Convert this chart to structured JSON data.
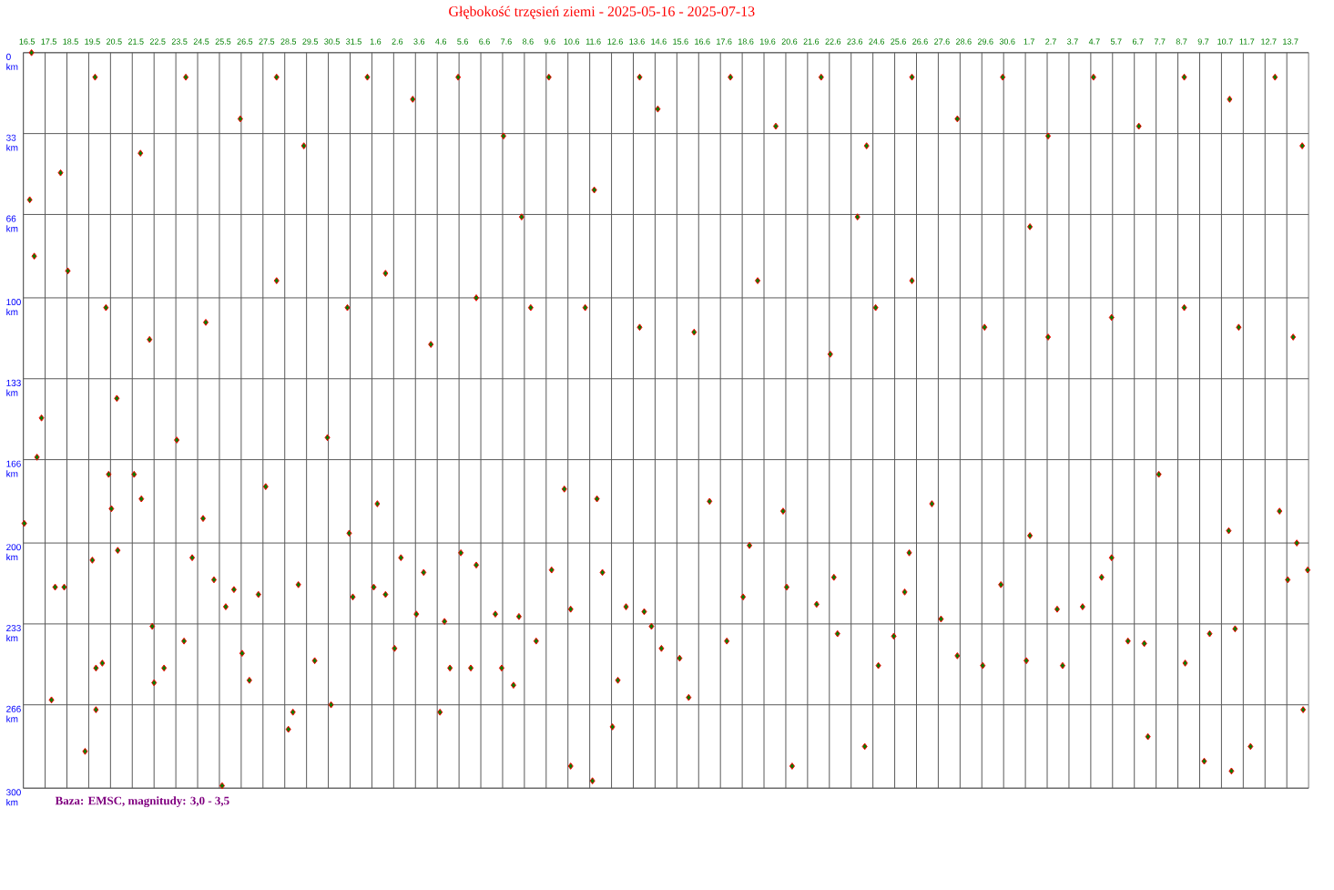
{
  "chart_data": {
    "type": "scatter",
    "title": "Głębokość trzęsień ziemi - 2025-05-16 - 2025-07-13",
    "annotations": [
      "Baza: EMSC, magnitudy: 3,0 - 3,5"
    ],
    "xlim": [
      "2025-05-16",
      "2025-07-14"
    ],
    "xticks": [
      {
        "value": "2025-05-16",
        "label": "16.5"
      },
      {
        "value": "2025-05-17",
        "label": "17.5"
      },
      {
        "value": "2025-05-18",
        "label": "18.5"
      },
      {
        "value": "2025-05-19",
        "label": "19.5"
      },
      {
        "value": "2025-05-20",
        "label": "20.5"
      },
      {
        "value": "2025-05-21",
        "label": "21.5"
      },
      {
        "value": "2025-05-22",
        "label": "22.5"
      },
      {
        "value": "2025-05-23",
        "label": "23.5"
      },
      {
        "value": "2025-05-24",
        "label": "24.5"
      },
      {
        "value": "2025-05-25",
        "label": "25.5"
      },
      {
        "value": "2025-05-26",
        "label": "26.5"
      },
      {
        "value": "2025-05-27",
        "label": "27.5"
      },
      {
        "value": "2025-05-28",
        "label": "28.5"
      },
      {
        "value": "2025-05-29",
        "label": "29.5"
      },
      {
        "value": "2025-05-30",
        "label": "30.5"
      },
      {
        "value": "2025-05-31",
        "label": "31.5"
      },
      {
        "value": "2025-06-01",
        "label": "1.6"
      },
      {
        "value": "2025-06-02",
        "label": "2.6"
      },
      {
        "value": "2025-06-03",
        "label": "3.6"
      },
      {
        "value": "2025-06-04",
        "label": "4.6"
      },
      {
        "value": "2025-06-05",
        "label": "5.6"
      },
      {
        "value": "2025-06-06",
        "label": "6.6"
      },
      {
        "value": "2025-06-07",
        "label": "7.6"
      },
      {
        "value": "2025-06-08",
        "label": "8.6"
      },
      {
        "value": "2025-06-09",
        "label": "9.6"
      },
      {
        "value": "2025-06-10",
        "label": "10.6"
      },
      {
        "value": "2025-06-11",
        "label": "11.6"
      },
      {
        "value": "2025-06-12",
        "label": "12.6"
      },
      {
        "value": "2025-06-13",
        "label": "13.6"
      },
      {
        "value": "2025-06-14",
        "label": "14.6"
      },
      {
        "value": "2025-06-15",
        "label": "15.6"
      },
      {
        "value": "2025-06-16",
        "label": "16.6"
      },
      {
        "value": "2025-06-17",
        "label": "17.6"
      },
      {
        "value": "2025-06-18",
        "label": "18.6"
      },
      {
        "value": "2025-06-19",
        "label": "19.6"
      },
      {
        "value": "2025-06-20",
        "label": "20.6"
      },
      {
        "value": "2025-06-21",
        "label": "21.6"
      },
      {
        "value": "2025-06-22",
        "label": "22.6"
      },
      {
        "value": "2025-06-23",
        "label": "23.6"
      },
      {
        "value": "2025-06-24",
        "label": "24.6"
      },
      {
        "value": "2025-06-25",
        "label": "25.6"
      },
      {
        "value": "2025-06-26",
        "label": "26.6"
      },
      {
        "value": "2025-06-27",
        "label": "27.6"
      },
      {
        "value": "2025-06-28",
        "label": "28.6"
      },
      {
        "value": "2025-06-29",
        "label": "29.6"
      },
      {
        "value": "2025-06-30",
        "label": "30.6"
      },
      {
        "value": "2025-07-01",
        "label": "1.7"
      },
      {
        "value": "2025-07-02",
        "label": "2.7"
      },
      {
        "value": "2025-07-03",
        "label": "3.7"
      },
      {
        "value": "2025-07-04",
        "label": "4.7"
      },
      {
        "value": "2025-07-05",
        "label": "5.7"
      },
      {
        "value": "2025-07-06",
        "label": "6.7"
      },
      {
        "value": "2025-07-07",
        "label": "7.7"
      },
      {
        "value": "2025-07-08",
        "label": "8.7"
      },
      {
        "value": "2025-07-09",
        "label": "9.7"
      },
      {
        "value": "2025-07-10",
        "label": "10.7"
      },
      {
        "value": "2025-07-11",
        "label": "11.7"
      },
      {
        "value": "2025-07-12",
        "label": "12.7"
      },
      {
        "value": "2025-07-13",
        "label": "13.7"
      }
    ],
    "ylim": [
      300,
      0
    ],
    "yticks": [
      {
        "value": 0,
        "label": "0 km"
      },
      {
        "value": 33,
        "label": "33 km"
      },
      {
        "value": 66,
        "label": "66 km"
      },
      {
        "value": 100,
        "label": "100 km"
      },
      {
        "value": 133,
        "label": "133 km"
      },
      {
        "value": 166,
        "label": "166 km"
      },
      {
        "value": 200,
        "label": "200 km"
      },
      {
        "value": 233,
        "label": "233 km"
      },
      {
        "value": 266,
        "label": "266 km"
      },
      {
        "value": 300,
        "label": "300 km"
      }
    ],
    "grid": true,
    "marker": "diamond",
    "series": [
      {
        "color": "#008000",
        "x": [
          "2025-05-16T01:00",
          "2025-05-16T09:00",
          "2025-05-16T07:00",
          "2025-05-16T12:00",
          "2025-05-16T15:00",
          "2025-05-16T20:00",
          "2025-05-17T07:00",
          "2025-05-17T11:00",
          "2025-05-17T21:00",
          "2025-05-17T17:00",
          "2025-05-18T01:00",
          "2025-05-18T20:00",
          "2025-05-19T04:00",
          "2025-05-19T08:00",
          "2025-05-19T08:00",
          "2025-05-19T15:00",
          "2025-05-19T22:00",
          "2025-05-20T01:00",
          "2025-05-20T08:00",
          "2025-05-20T07:00",
          "2025-05-21T02:00",
          "2025-05-21T10:00",
          "2025-05-21T22:00",
          "2025-05-22T00:00",
          "2025-05-22T11:00",
          "2025-05-23T01:00",
          "2025-05-23T09:00",
          "2025-05-23T18:00",
          "2025-05-24T06:00",
          "2025-05-24T18:00",
          "2025-05-25T07:00",
          "2025-05-25T03:00",
          "2025-05-25T16:00",
          "2025-05-26T01:00",
          "2025-05-26T09:00",
          "2025-05-26T19:00",
          "2025-05-27T03:00",
          "2025-05-28T04:00",
          "2025-05-28T09:00",
          "2025-05-28T15:00",
          "2025-05-29T09:00",
          "2025-05-30T03:00",
          "2025-05-29T23:00",
          "2025-05-30T23:00",
          "2025-05-31T03:00",
          "2025-06-01T02:00",
          "2025-06-01T06:00",
          "2025-06-01T15:00",
          "2025-06-02T01:00",
          "2025-06-02T08:00",
          "2025-06-03T01:00",
          "2025-06-03T09:00",
          "2025-06-04T03:00",
          "2025-06-04T08:00",
          "2025-06-04T14:00",
          "2025-06-05T02:00",
          "2025-06-05T13:00",
          "2025-06-05T19:00",
          "2025-06-06T16:00",
          "2025-06-06T23:00",
          "2025-06-07T12:00",
          "2025-06-07T18:00",
          "2025-06-08T13:00",
          "2025-06-09T06:00",
          "2025-06-09T20:00",
          "2025-06-10T03:00",
          "2025-06-10T03:00",
          "2025-06-11T03:00",
          "2025-06-11T08:00",
          "2025-06-11T14:00",
          "2025-06-12T01:00",
          "2025-06-12T07:00",
          "2025-06-12T16:00",
          "2025-06-13T12:00",
          "2025-06-13T20:00",
          "2025-06-14T07:00",
          "2025-06-15T03:00",
          "2025-06-15T13:00",
          "2025-06-16T12:00",
          "2025-06-17T07:00",
          "2025-06-18T01:00",
          "2025-06-18T08:00",
          "2025-06-19T21:00",
          "2025-06-20T07:00",
          "2025-06-20T01:00",
          "2025-06-21T10:00",
          "2025-06-22T05:00",
          "2025-06-22T09:00",
          "2025-06-23T15:00",
          "2025-06-24T06:00",
          "2025-06-24T23:00",
          "2025-06-25T11:00",
          "2025-06-25T16:00",
          "2025-06-26T17:00",
          "2025-06-27T03:00",
          "2025-06-27T21:00",
          "2025-06-29T01:00",
          "2025-06-29T21:00",
          "2025-07-01T01:00",
          "2025-07-01T05:00",
          "2025-07-02T11:00",
          "2025-07-02T17:00",
          "2025-07-03T15:00",
          "2025-07-04T12:00",
          "2025-07-04T23:00",
          "2025-07-05T17:00",
          "2025-07-06T11:00",
          "2025-07-06T15:00",
          "2025-07-07T03:00",
          "2025-07-08T08:00",
          "2025-07-09T05:00",
          "2025-07-09T11:00",
          "2025-07-10T08:00",
          "2025-07-10T11:00",
          "2025-07-10T15:00",
          "2025-07-11T08:00",
          "2025-07-12T16:00",
          "2025-07-13T01:00",
          "2025-07-13T11:00",
          "2025-07-13T18:00",
          "2025-07-13T23:00",
          "2025-05-19T07:00",
          "2025-05-23T11:00",
          "2025-05-27T15:00",
          "2025-05-31T19:00",
          "2025-06-04T23:00",
          "2025-06-09T03:00",
          "2025-06-13T07:00",
          "2025-06-17T11:00",
          "2025-06-21T15:00",
          "2025-06-25T19:00",
          "2025-06-29T23:00",
          "2025-07-04T03:00",
          "2025-07-08T07:00",
          "2025-07-12T11:00",
          "2025-05-19T19:00",
          "2025-05-21T19:00",
          "2025-05-24T09:00",
          "2025-05-27T15:00",
          "2025-05-30T21:00",
          "2025-06-01T15:00",
          "2025-06-03T17:00",
          "2025-06-05T19:00",
          "2025-06-08T07:00",
          "2025-06-10T19:00",
          "2025-06-13T07:00",
          "2025-06-15T19:00",
          "2025-06-18T17:00",
          "2025-06-22T01:00",
          "2025-06-24T03:00",
          "2025-06-25T19:00",
          "2025-06-29T03:00",
          "2025-07-02T01:00",
          "2025-07-04T23:00",
          "2025-07-08T07:00",
          "2025-07-10T19:00",
          "2025-07-13T07:00",
          "2025-05-21T09:00",
          "2025-05-25T23:00",
          "2025-05-28T21:00",
          "2025-06-02T21:00",
          "2025-06-07T01:00",
          "2025-06-11T05:00",
          "2025-06-14T03:00",
          "2025-06-19T13:00",
          "2025-06-23T17:00",
          "2025-06-27T21:00",
          "2025-07-02T01:00",
          "2025-07-06T05:00",
          "2025-07-10T09:00",
          "2025-07-13T17:00",
          "2025-06-07T21:00",
          "2025-07-01T05:00",
          "2025-06-23T07:00"
        ],
        "values": [
          192,
          0,
          60,
          83,
          165,
          149,
          264,
          218,
          218,
          49,
          89,
          285,
          207,
          251,
          268,
          249,
          172,
          186,
          203,
          141,
          172,
          182,
          234,
          257,
          251,
          158,
          240,
          206,
          190,
          215,
          226,
          299,
          219,
          245,
          256,
          221,
          177,
          276,
          269,
          217,
          248,
          266,
          157,
          196,
          222,
          218,
          184,
          221,
          243,
          206,
          229,
          212,
          269,
          232,
          251,
          204,
          251,
          209,
          229,
          251,
          258,
          230,
          240,
          211,
          178,
          291,
          227,
          297,
          182,
          212,
          275,
          256,
          226,
          228,
          234,
          243,
          247,
          263,
          183,
          240,
          222,
          201,
          187,
          291,
          218,
          225,
          214,
          237,
          283,
          250,
          238,
          220,
          204,
          184,
          231,
          246,
          250,
          217,
          248,
          197,
          227,
          250,
          226,
          214,
          206,
          240,
          241,
          279,
          172,
          249,
          289,
          237,
          195,
          293,
          235,
          283,
          187,
          215,
          200,
          268,
          211,
          10,
          10,
          10,
          10,
          10,
          10,
          10,
          10,
          10,
          10,
          10,
          10,
          10,
          10,
          104,
          117,
          110,
          93,
          104,
          90,
          119,
          100,
          104,
          104,
          112,
          114,
          93,
          123,
          104,
          93,
          112,
          116,
          108,
          104,
          112,
          116,
          41,
          27,
          38,
          19,
          34,
          56,
          23,
          30,
          38,
          27,
          34,
          30,
          19,
          38,
          67,
          71,
          67
        ]
      }
    ]
  }
}
